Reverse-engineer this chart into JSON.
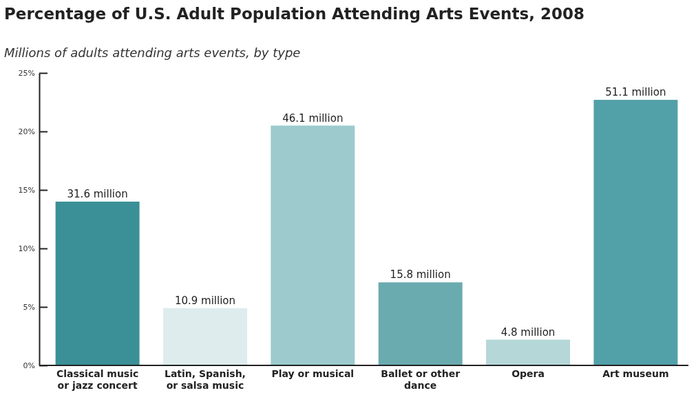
{
  "chart_data": {
    "type": "bar",
    "title": "Percentage of U.S. Adult Population Attending Arts Events, 2008",
    "subtitle": "Millions of adults attending arts events, by type",
    "categories": [
      "Classical music or jazz concert",
      "Latin, Spanish, or salsa music",
      "Play or musical",
      "Ballet or other dance",
      "Opera",
      "Art museum"
    ],
    "values": [
      14.0,
      4.9,
      20.5,
      7.1,
      2.2,
      22.7
    ],
    "colors": [
      "#3a9096",
      "#deeced",
      "#9ccacd",
      "#6aabb0",
      "#b5d7d8",
      "#52a0a8"
    ],
    "annotations": [
      {
        "text": "31.6 million",
        "x": "Classical music or jazz concert",
        "y": 14.0
      },
      {
        "text": "10.9 million",
        "x": "Latin, Spanish, or salsa music",
        "y": 4.9
      },
      {
        "text": "46.1 million",
        "x": "Play or musical",
        "y": 20.5
      },
      {
        "text": "15.8 million",
        "x": "Ballet or other dance",
        "y": 7.1
      },
      {
        "text": "4.8 million",
        "x": "Opera",
        "y": 2.2
      },
      {
        "text": "51.1 million",
        "x": "Art museum",
        "y": 22.7
      }
    ],
    "ylim": [
      0,
      25
    ],
    "yticks": [
      {
        "value": 0,
        "label": "0%"
      },
      {
        "value": 5,
        "label": "5%"
      },
      {
        "value": 10,
        "label": "10%"
      },
      {
        "value": 15,
        "label": "15%"
      },
      {
        "value": 20,
        "label": "20%"
      },
      {
        "value": 25,
        "label": "25%"
      }
    ],
    "grid": false
  }
}
